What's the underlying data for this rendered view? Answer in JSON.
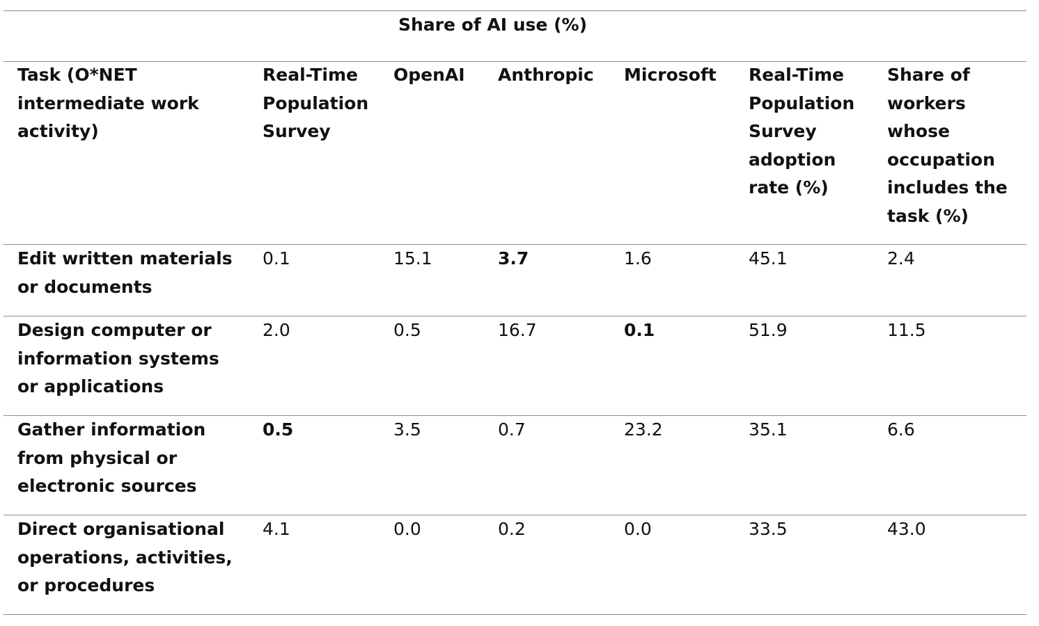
{
  "table": {
    "group_header": "Share of AI use (%)",
    "columns": [
      {
        "lines": [
          "Task (O*NET",
          "intermediate work",
          "activity)"
        ]
      },
      {
        "lines": [
          "Real-Time",
          "Population",
          "Survey"
        ]
      },
      {
        "lines": [
          "OpenAI"
        ]
      },
      {
        "lines": [
          "Anthropic"
        ]
      },
      {
        "lines": [
          "Microsoft"
        ]
      },
      {
        "lines": [
          "Real-Time",
          "Population",
          "Survey",
          "adoption",
          "rate (%)"
        ]
      },
      {
        "lines": [
          "Share of",
          "workers",
          "whose",
          "occupation",
          "includes the",
          "task (%)"
        ]
      }
    ],
    "rows": [
      {
        "task_lines": [
          "Edit written materials",
          "or documents"
        ],
        "values": [
          "0.1",
          "15.1",
          "3.7",
          "1.6",
          "45.1",
          "2.4"
        ],
        "bold_index": 2
      },
      {
        "task_lines": [
          "Design computer or",
          "information systems",
          "or applications"
        ],
        "values": [
          "2.0",
          "0.5",
          "16.7",
          "0.1",
          "51.9",
          "11.5"
        ],
        "bold_index": 3
      },
      {
        "task_lines": [
          "Gather information",
          "from physical or",
          "electronic sources"
        ],
        "values": [
          "0.5",
          "3.5",
          "0.7",
          "23.2",
          "35.1",
          "6.6"
        ],
        "bold_index": 0
      },
      {
        "task_lines": [
          "Direct organisational",
          "operations, activities,",
          "or procedures"
        ],
        "values": [
          "4.1",
          "0.0",
          "0.2",
          "0.0",
          "33.5",
          "43.0"
        ],
        "bold_index": -1
      }
    ]
  }
}
